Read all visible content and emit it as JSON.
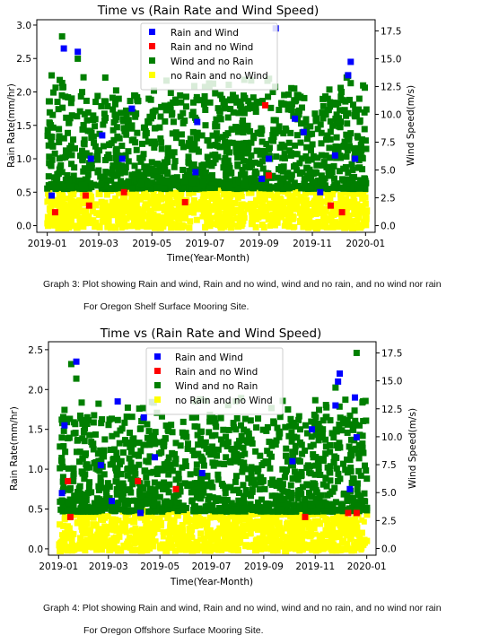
{
  "chart_data": [
    {
      "type": "scatter",
      "title": "Time vs (Rain Rate and Wind Speed)",
      "xlabel": "Time(Year-Month)",
      "ylabel": "Rain Rate(mm/hr)",
      "y2label": "Wind Speed(m/s)",
      "x_ticks": [
        "2019-01",
        "2019-03",
        "2019-05",
        "2019-07",
        "2019-09",
        "2019-11",
        "2020-01"
      ],
      "y_ticks": [
        "0.0",
        "0.5",
        "1.0",
        "1.5",
        "2.0",
        "2.5",
        "3.0"
      ],
      "y2_ticks": [
        "0.0",
        "2.5",
        "5.0",
        "7.5",
        "10.0",
        "12.5",
        "15.0",
        "17.5"
      ],
      "ylim": [
        -0.1,
        3.08
      ],
      "y2lim": [
        -0.6,
        18.5
      ],
      "legend_position": "top-center",
      "grid": false,
      "series": [
        {
          "name": "Rain and Wind",
          "color": "#0000ff",
          "axis": "left",
          "points": [
            [
              "2019-01-06",
              0.45
            ],
            [
              "2019-01-20",
              2.65
            ],
            [
              "2019-02-05",
              2.6
            ],
            [
              "2019-02-20",
              1.0
            ],
            [
              "2019-03-05",
              1.35
            ],
            [
              "2019-03-28",
              1.0
            ],
            [
              "2019-04-08",
              1.75
            ],
            [
              "2019-06-20",
              0.8
            ],
            [
              "2019-06-22",
              1.55
            ],
            [
              "2019-09-04",
              0.7
            ],
            [
              "2019-09-12",
              1.0
            ],
            [
              "2019-09-20",
              2.95
            ],
            [
              "2019-10-12",
              1.6
            ],
            [
              "2019-10-22",
              1.4
            ],
            [
              "2019-11-10",
              0.5
            ],
            [
              "2019-11-27",
              1.05
            ],
            [
              "2019-12-12",
              2.25
            ],
            [
              "2019-12-15",
              2.45
            ],
            [
              "2019-12-20",
              1.0
            ]
          ]
        },
        {
          "name": "Rain and no Wind",
          "color": "#ff0000",
          "axis": "left",
          "points": [
            [
              "2019-01-10",
              0.2
            ],
            [
              "2019-02-14",
              0.45
            ],
            [
              "2019-02-18",
              0.3
            ],
            [
              "2019-03-30",
              0.5
            ],
            [
              "2019-06-08",
              0.35
            ],
            [
              "2019-09-08",
              1.8
            ],
            [
              "2019-09-12",
              0.75
            ],
            [
              "2019-11-22",
              0.3
            ],
            [
              "2019-12-05",
              0.2
            ]
          ]
        },
        {
          "name": "Wind and no Rain",
          "color": "#007f00",
          "axis": "right"
        },
        {
          "name": "no Rain and no Wind",
          "color": "#ffff00",
          "axis": "right"
        }
      ]
    },
    {
      "type": "scatter",
      "title": "Time vs (Rain Rate and Wind Speed)",
      "xlabel": "Time(Year-Month)",
      "ylabel": "Rain Rate(mm/hr)",
      "y2label": "Wind Speed(m/s)",
      "x_ticks": [
        "2019-01",
        "2019-03",
        "2019-05",
        "2019-07",
        "2019-09",
        "2019-11",
        "2020-01"
      ],
      "y_ticks": [
        "0.0",
        "0.5",
        "1.0",
        "1.5",
        "2.0",
        "2.5"
      ],
      "y2_ticks": [
        "0.0",
        "2.5",
        "5.0",
        "7.5",
        "10.0",
        "12.5",
        "15.0",
        "17.5"
      ],
      "ylim": [
        -0.08,
        2.6
      ],
      "y2lim": [
        -0.6,
        18.5
      ],
      "legend_position": "top-center",
      "grid": false,
      "series": [
        {
          "name": "Rain and Wind",
          "color": "#0000ff",
          "axis": "left",
          "points": [
            [
              "2019-01-05",
              0.7
            ],
            [
              "2019-01-08",
              1.55
            ],
            [
              "2019-01-22",
              2.35
            ],
            [
              "2019-02-20",
              1.05
            ],
            [
              "2019-03-05",
              0.6
            ],
            [
              "2019-03-12",
              1.85
            ],
            [
              "2019-04-08",
              0.45
            ],
            [
              "2019-04-12",
              1.65
            ],
            [
              "2019-04-25",
              1.15
            ],
            [
              "2019-06-20",
              0.95
            ],
            [
              "2019-10-05",
              1.1
            ],
            [
              "2019-10-28",
              1.5
            ],
            [
              "2019-11-25",
              1.8
            ],
            [
              "2019-11-28",
              2.1
            ],
            [
              "2019-11-30",
              2.2
            ],
            [
              "2019-12-12",
              0.75
            ],
            [
              "2019-12-18",
              1.9
            ],
            [
              "2019-12-20",
              1.4
            ]
          ]
        },
        {
          "name": "Rain and no Wind",
          "color": "#ff0000",
          "axis": "left",
          "points": [
            [
              "2019-01-12",
              0.85
            ],
            [
              "2019-01-15",
              0.4
            ],
            [
              "2019-04-05",
              0.85
            ],
            [
              "2019-05-20",
              0.75
            ],
            [
              "2019-10-20",
              0.4
            ],
            [
              "2019-12-10",
              0.45
            ],
            [
              "2019-12-20",
              0.45
            ]
          ]
        },
        {
          "name": "Wind and no Rain",
          "color": "#007f00",
          "axis": "right"
        },
        {
          "name": "no Rain and no Wind",
          "color": "#ffff00",
          "axis": "right"
        }
      ]
    }
  ],
  "captions": [
    {
      "line1": "Graph 3: Plot showing Rain and wind, Rain and no wind, wind and no rain, and no wind nor rain",
      "line2": "For Oregon Shelf Surface Mooring Site."
    },
    {
      "line1": "Graph 4: Plot showing Rain and wind, Rain and no wind, wind and no rain, and no wind nor rain",
      "line2": "For Oregon Offshore Surface Mooring Site."
    }
  ]
}
